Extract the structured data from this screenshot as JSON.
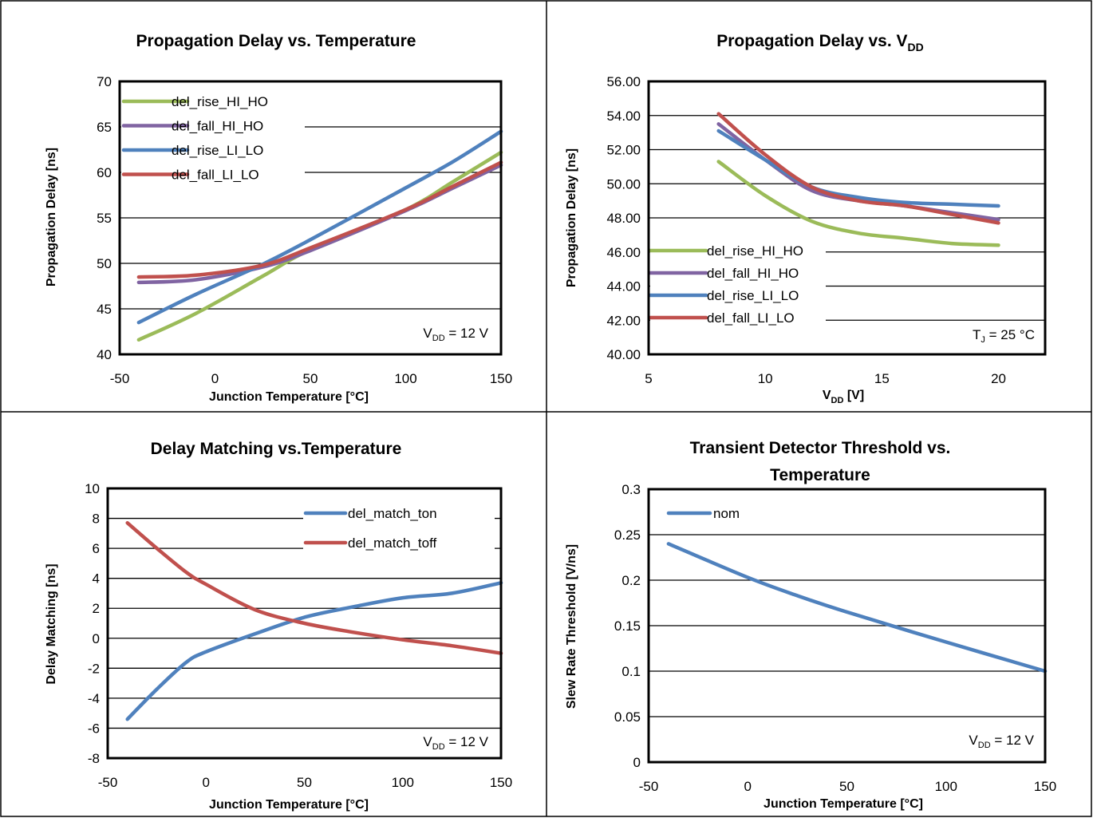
{
  "colors": {
    "green": "#9BBB59",
    "purple": "#8064A2",
    "blue": "#4F81BD",
    "red": "#C0504D",
    "grid": "#000000",
    "frame": "#000000"
  },
  "chart_data": [
    {
      "type": "line",
      "title": "Propagation Delay vs. Temperature",
      "xlabel": "Junction Temperature [°C]",
      "ylabel": "Propagation Delay [ns]",
      "xlim": [
        -50,
        150
      ],
      "ylim": [
        40,
        70
      ],
      "xticks": [
        -50,
        0,
        50,
        100,
        150
      ],
      "yticks": [
        40,
        45,
        50,
        55,
        60,
        65,
        70
      ],
      "xtick_labels": [
        "-50",
        "0",
        "50",
        "100",
        "150"
      ],
      "ytick_labels": [
        "40",
        "45",
        "50",
        "55",
        "60",
        "65",
        "70"
      ],
      "grid": "horizontal",
      "legend_position": "top-left",
      "annotation": {
        "main": "V",
        "sub": "DD",
        "rest": " =  12 V"
      },
      "series": [
        {
          "name": "del_rise_HI_HO",
          "color": "#9BBB59",
          "x": [
            -40,
            -10,
            25,
            50,
            100,
            125,
            150
          ],
          "y": [
            41.6,
            44.5,
            48.6,
            51.5,
            55.9,
            59.0,
            62.2
          ]
        },
        {
          "name": "del_fall_HI_HO",
          "color": "#8064A2",
          "x": [
            -40,
            -10,
            25,
            50,
            100,
            125,
            150
          ],
          "y": [
            47.9,
            48.2,
            49.6,
            51.4,
            55.8,
            58.3,
            60.8
          ]
        },
        {
          "name": "del_rise_LI_LO",
          "color": "#4F81BD",
          "x": [
            -40,
            -10,
            25,
            50,
            100,
            125,
            150
          ],
          "y": [
            43.5,
            46.6,
            49.9,
            52.6,
            58.3,
            61.2,
            64.5
          ]
        },
        {
          "name": "del_fall_LI_LO",
          "color": "#C0504D",
          "x": [
            -40,
            -10,
            25,
            50,
            100,
            125,
            150
          ],
          "y": [
            48.5,
            48.7,
            49.8,
            51.7,
            55.9,
            58.5,
            61.1
          ]
        }
      ]
    },
    {
      "type": "line",
      "title_main": "Propagation Delay vs. V",
      "title_sub": "DD",
      "xlabel_main": "V",
      "xlabel_sub": "DD",
      "xlabel_rest": " [V]",
      "ylabel": "Propagation Delay [ns]",
      "xlim": [
        5,
        22
      ],
      "ylim": [
        40,
        56
      ],
      "xticks": [
        5,
        10,
        15,
        20
      ],
      "yticks": [
        40,
        42,
        44,
        46,
        48,
        50,
        52,
        54,
        56
      ],
      "xtick_labels": [
        "5",
        "10",
        "15",
        "20"
      ],
      "ytick_labels": [
        "40.00",
        "42.00",
        "44.00",
        "46.00",
        "48.00",
        "50.00",
        "52.00",
        "54.00",
        "56.00"
      ],
      "grid": "horizontal",
      "legend_position": "bottom-left",
      "annotation": {
        "main": "T",
        "sub": "J",
        "rest": " = 25 °C"
      },
      "series": [
        {
          "name": "del_rise_HI_HO",
          "color": "#9BBB59",
          "x": [
            8,
            10,
            12,
            14,
            16,
            18,
            20
          ],
          "y": [
            51.3,
            49.3,
            47.8,
            47.1,
            46.8,
            46.5,
            46.4
          ]
        },
        {
          "name": "del_fall_HI_HO",
          "color": "#8064A2",
          "x": [
            8,
            10,
            12,
            14,
            16,
            18,
            20
          ],
          "y": [
            53.5,
            51.4,
            49.6,
            49.0,
            48.7,
            48.3,
            47.9
          ]
        },
        {
          "name": "del_rise_LI_LO",
          "color": "#4F81BD",
          "x": [
            8,
            10,
            12,
            14,
            16,
            18,
            20
          ],
          "y": [
            53.1,
            51.4,
            49.8,
            49.2,
            48.9,
            48.8,
            48.7
          ]
        },
        {
          "name": "del_fall_LI_LO",
          "color": "#C0504D",
          "x": [
            8,
            10,
            12,
            14,
            16,
            18,
            20
          ],
          "y": [
            54.1,
            51.7,
            49.8,
            49.0,
            48.7,
            48.2,
            47.7
          ]
        }
      ]
    },
    {
      "type": "line",
      "title": "Delay Matching vs.Temperature",
      "xlabel": "Junction Temperature [°C]",
      "ylabel": "Delay Matching [ns]",
      "xlim": [
        -50,
        150
      ],
      "ylim": [
        -8,
        10
      ],
      "xticks": [
        -50,
        0,
        50,
        100,
        150
      ],
      "yticks": [
        -8,
        -6,
        -4,
        -2,
        0,
        2,
        4,
        6,
        8,
        10
      ],
      "xtick_labels": [
        "-50",
        "0",
        "50",
        "100",
        "150"
      ],
      "ytick_labels": [
        "-8",
        "-6",
        "-4",
        "-2",
        "0",
        "2",
        "4",
        "6",
        "8",
        "10"
      ],
      "grid": "horizontal",
      "legend_position": "top-right",
      "annotation": {
        "main": "V",
        "sub": "DD",
        "rest": " =  12 V"
      },
      "series": [
        {
          "name": "del_match_ton",
          "color": "#4F81BD",
          "x": [
            -40,
            -25,
            -10,
            0,
            25,
            50,
            75,
            100,
            125,
            150
          ],
          "y": [
            -5.4,
            -3.4,
            -1.6,
            -0.9,
            0.3,
            1.4,
            2.1,
            2.7,
            3.0,
            3.7
          ]
        },
        {
          "name": "del_match_toff",
          "color": "#C0504D",
          "x": [
            -40,
            -25,
            -10,
            0,
            25,
            50,
            75,
            100,
            125,
            150
          ],
          "y": [
            7.7,
            6.0,
            4.4,
            3.6,
            1.9,
            1.0,
            0.4,
            -0.1,
            -0.5,
            -1.0
          ]
        }
      ]
    },
    {
      "type": "line",
      "title_line1": "Transient Detector Threshold  vs.",
      "title_line2": "Temperature",
      "xlabel": "Junction Temperature [°C]",
      "ylabel": "Slew Rate Threshold [V/ns]",
      "xlim": [
        -50,
        150
      ],
      "ylim": [
        0,
        0.3
      ],
      "xticks": [
        -50,
        0,
        50,
        100,
        150
      ],
      "yticks": [
        0,
        0.05,
        0.1,
        0.15,
        0.2,
        0.25,
        0.3
      ],
      "xtick_labels": [
        "-50",
        "0",
        "50",
        "100",
        "150"
      ],
      "ytick_labels": [
        "0",
        "0.05",
        "0.1",
        "0.15",
        "0.2",
        "0.25",
        "0.3"
      ],
      "grid": "horizontal",
      "legend_position": "top-left",
      "annotation": {
        "main": "V",
        "sub": "DD",
        "rest": " =  12 V"
      },
      "series": [
        {
          "name": "nom",
          "color": "#4F81BD",
          "x": [
            -40,
            0,
            25,
            50,
            100,
            150
          ],
          "y": [
            0.24,
            0.203,
            0.183,
            0.165,
            0.132,
            0.1
          ]
        }
      ]
    }
  ]
}
